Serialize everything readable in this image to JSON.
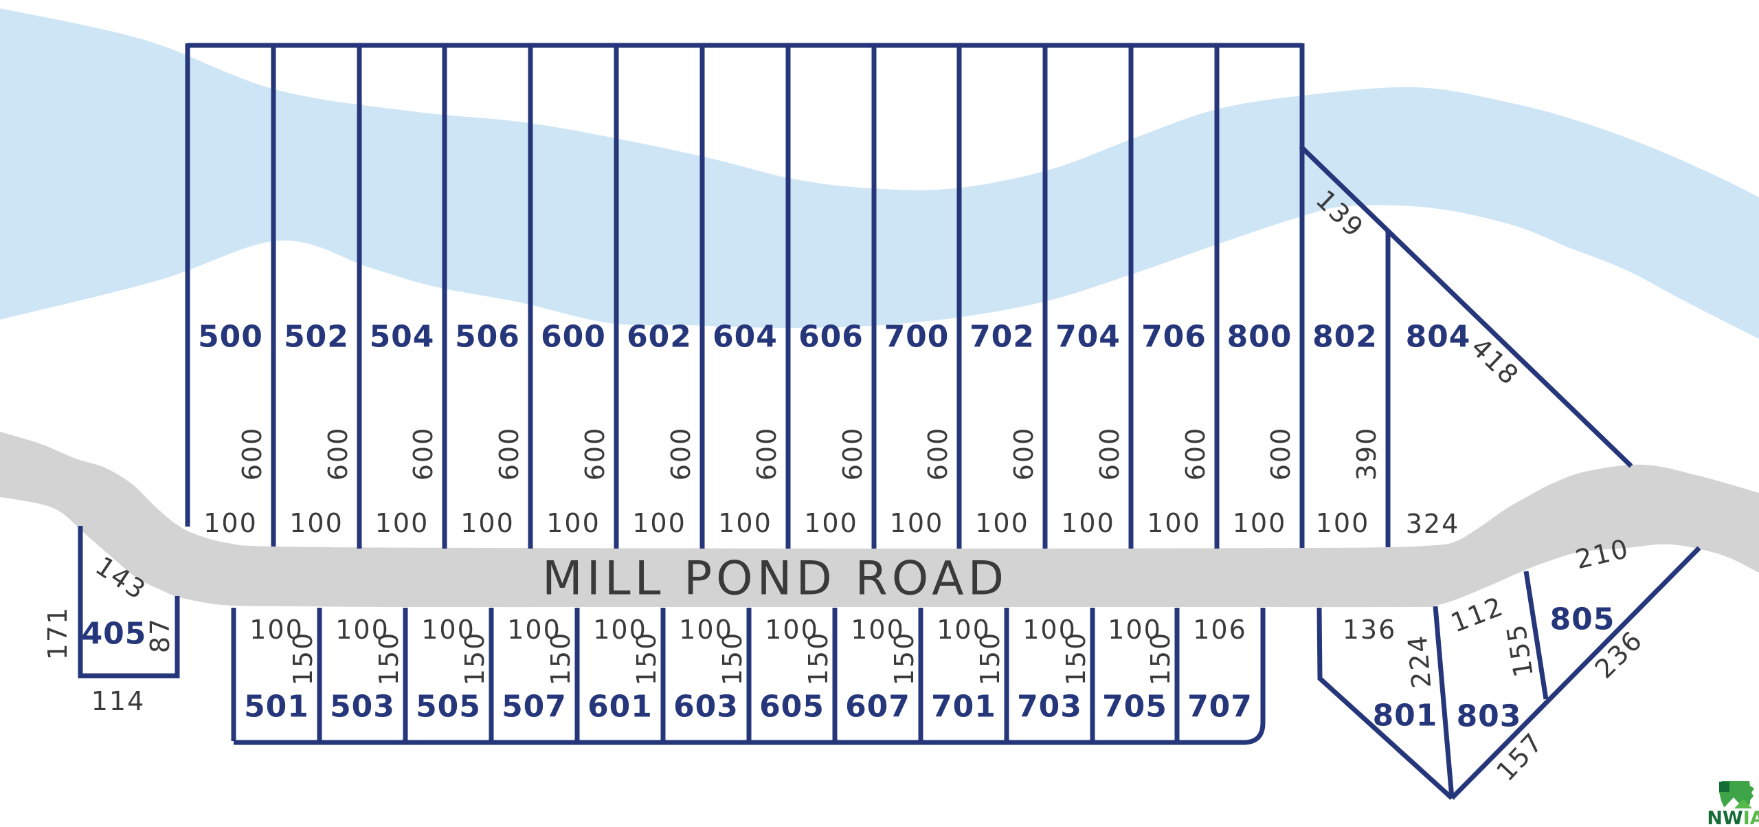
{
  "road": {
    "label": "MILL POND ROAD"
  },
  "colors": {
    "line_navy": "#26367b",
    "lot_number": "#26367b",
    "dimension_text": "#3a3a3a",
    "river": "#cee5f6",
    "road": "#d3d3d3",
    "road_label": "#3a3a3a",
    "background": "#ffffff",
    "logo_green": "#3da548",
    "logo_dark_green": "#146c37",
    "logo_light_green": "#57b948"
  },
  "top_row": {
    "lots": [
      {
        "number": "500",
        "depth": "600",
        "width": "100"
      },
      {
        "number": "502",
        "depth": "600",
        "width": "100"
      },
      {
        "number": "504",
        "depth": "600",
        "width": "100"
      },
      {
        "number": "506",
        "depth": "600",
        "width": "100"
      },
      {
        "number": "600",
        "depth": "600",
        "width": "100"
      },
      {
        "number": "602",
        "depth": "600",
        "width": "100"
      },
      {
        "number": "604",
        "depth": "600",
        "width": "100"
      },
      {
        "number": "606",
        "depth": "600",
        "width": "100"
      },
      {
        "number": "700",
        "depth": "600",
        "width": "100"
      },
      {
        "number": "702",
        "depth": "600",
        "width": "100"
      },
      {
        "number": "704",
        "depth": "600",
        "width": "100"
      },
      {
        "number": "706",
        "depth": "600",
        "width": "100"
      },
      {
        "number": "800",
        "depth": "600",
        "width": "100"
      },
      {
        "number": "802",
        "depth": "390",
        "width": "100",
        "northeast_edge": "139"
      },
      {
        "number": "804",
        "width": "324",
        "northeast_edge": "418"
      }
    ]
  },
  "bottom_row": {
    "lots": [
      {
        "number": "501",
        "width": "100",
        "depth": "150"
      },
      {
        "number": "503",
        "width": "100",
        "depth": "150"
      },
      {
        "number": "505",
        "width": "100",
        "depth": "150"
      },
      {
        "number": "507",
        "width": "100",
        "depth": "150"
      },
      {
        "number": "601",
        "width": "100",
        "depth": "150"
      },
      {
        "number": "603",
        "width": "100",
        "depth": "150"
      },
      {
        "number": "605",
        "width": "100",
        "depth": "150"
      },
      {
        "number": "607",
        "width": "100",
        "depth": "150"
      },
      {
        "number": "701",
        "width": "100",
        "depth": "150"
      },
      {
        "number": "703",
        "width": "100",
        "depth": "150"
      },
      {
        "number": "705",
        "width": "100",
        "depth": "150"
      },
      {
        "number": "707",
        "width": "106"
      }
    ]
  },
  "west_lot": {
    "number": "405",
    "north_edge": "143",
    "west_edge": "171",
    "east_edge": "87",
    "south_edge": "114"
  },
  "southeast_lots": [
    {
      "number": "801",
      "road_frontage": "136",
      "east_edge": "224"
    },
    {
      "number": "803",
      "road_frontage": "112",
      "east_edge": "155",
      "south_edge": "157"
    },
    {
      "number": "805",
      "road_frontage": "210",
      "southeast_edge": "236"
    }
  ],
  "logo": {
    "nw": "NW",
    "ia": "IA"
  }
}
